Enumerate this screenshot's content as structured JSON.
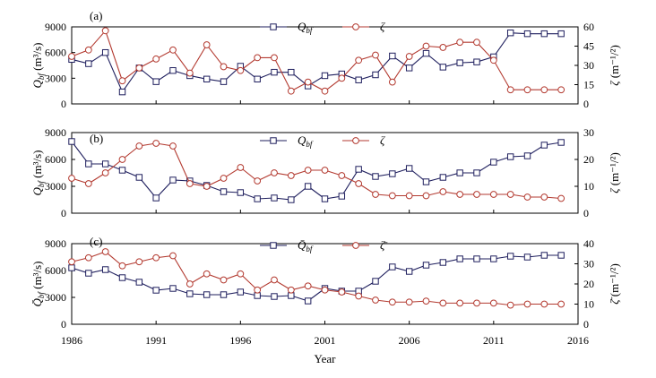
{
  "chart_data": [
    {
      "type": "line",
      "panel_label": "(a)",
      "x": [
        1986,
        1987,
        1988,
        1989,
        1990,
        1991,
        1992,
        1993,
        1994,
        1995,
        1996,
        1997,
        1998,
        1999,
        2000,
        2001,
        2002,
        2003,
        2004,
        2005,
        2006,
        2007,
        2008,
        2009,
        2010,
        2011,
        2012,
        2013,
        2014,
        2015
      ],
      "series": [
        {
          "name": "Q_bf",
          "axis": "left",
          "color": "#1f1f5e",
          "marker": "square",
          "values": [
            5200,
            4700,
            6000,
            1400,
            4200,
            2600,
            3900,
            3300,
            2900,
            2600,
            4400,
            2900,
            3700,
            3700,
            2100,
            3300,
            3500,
            2800,
            3400,
            5600,
            4200,
            5900,
            4300,
            4800,
            4900,
            5500,
            8300,
            8200,
            8200,
            8200
          ]
        },
        {
          "name": "ζ",
          "axis": "right",
          "color": "#b33a30",
          "marker": "circle",
          "values": [
            37,
            42,
            57,
            18,
            28,
            35,
            42,
            24,
            46,
            29,
            26,
            36,
            36,
            10,
            17,
            10,
            20,
            34,
            38,
            17,
            37,
            45,
            44,
            48,
            48,
            34,
            11,
            11,
            11,
            11
          ]
        }
      ],
      "ylabel_left": "Q_bf (m³/s)",
      "ylabel_right": "ζ (m⁻¹/²)",
      "ylim_left": [
        0,
        9000
      ],
      "yticks_left": [
        "0",
        "3000",
        "6000",
        "9000"
      ],
      "ylim_right": [
        0,
        60
      ],
      "yticks_right": [
        "0",
        "15",
        "30",
        "45",
        "60"
      ],
      "legend": [
        "Q_bf",
        "ζ"
      ],
      "legend_position": "top-center"
    },
    {
      "type": "line",
      "panel_label": "(b)",
      "x": [
        1986,
        1987,
        1988,
        1989,
        1990,
        1991,
        1992,
        1993,
        1994,
        1995,
        1996,
        1997,
        1998,
        1999,
        2000,
        2001,
        2002,
        2003,
        2004,
        2005,
        2006,
        2007,
        2008,
        2009,
        2010,
        2011,
        2012,
        2013,
        2014,
        2015
      ],
      "series": [
        {
          "name": "Q_bf",
          "axis": "left",
          "color": "#1f1f5e",
          "marker": "square",
          "values": [
            8000,
            5500,
            5500,
            4800,
            4000,
            1700,
            3700,
            3600,
            3100,
            2400,
            2300,
            1600,
            1700,
            1500,
            3000,
            1600,
            1900,
            4900,
            4100,
            4400,
            5000,
            3500,
            4000,
            4500,
            4500,
            5700,
            6300,
            6400,
            7600,
            7900
          ]
        },
        {
          "name": "ζ",
          "axis": "right",
          "color": "#b33a30",
          "marker": "circle",
          "values": [
            13,
            11,
            15,
            20,
            25,
            26,
            25,
            11,
            10,
            13,
            17,
            12,
            15,
            14,
            16,
            16,
            14,
            11,
            7,
            6.5,
            6.5,
            6.5,
            8,
            7,
            7,
            7,
            7,
            6,
            6,
            5.5
          ]
        }
      ],
      "ylabel_left": "Q_bf (m³/s)",
      "ylabel_right": "ζ (m⁻¹/²)",
      "ylim_left": [
        0,
        9000
      ],
      "yticks_left": [
        "0",
        "3000",
        "6000",
        "9000"
      ],
      "ylim_right": [
        0,
        30
      ],
      "yticks_right": [
        "0",
        "10",
        "20",
        "30"
      ],
      "legend": [
        "Q_bf",
        "ζ"
      ],
      "legend_position": "top-center"
    },
    {
      "type": "line",
      "panel_label": "(c)",
      "x": [
        1986,
        1987,
        1988,
        1989,
        1990,
        1991,
        1992,
        1993,
        1994,
        1995,
        1996,
        1997,
        1998,
        1999,
        2000,
        2001,
        2002,
        2003,
        2004,
        2005,
        2006,
        2007,
        2008,
        2009,
        2010,
        2011,
        2012,
        2013,
        2014,
        2015
      ],
      "series": [
        {
          "name": "Q̄_bf",
          "axis": "left",
          "color": "#1f1f5e",
          "marker": "square",
          "values": [
            6300,
            5700,
            6100,
            5200,
            4700,
            3800,
            4000,
            3400,
            3300,
            3300,
            3600,
            3200,
            3100,
            3200,
            2600,
            4000,
            3700,
            3700,
            4800,
            6400,
            5900,
            6600,
            6900,
            7300,
            7300,
            7300,
            7600,
            7500,
            7700,
            7700
          ]
        },
        {
          "name": "ζ̄",
          "axis": "right",
          "color": "#b33a30",
          "marker": "circle",
          "values": [
            31,
            33,
            36,
            29,
            31,
            33,
            34,
            20,
            25,
            22,
            25,
            17,
            22,
            17,
            19,
            17,
            16,
            14,
            12,
            11,
            11,
            11.5,
            10.5,
            10.5,
            10.5,
            10.5,
            9.5,
            10,
            10,
            10
          ]
        }
      ],
      "ylabel_left": "Q̄_bf (m³/s)",
      "ylabel_right": "ζ̄ (m⁻¹/²)",
      "ylim_left": [
        0,
        9000
      ],
      "yticks_left": [
        "0",
        "3000",
        "6000",
        "9000"
      ],
      "ylim_right": [
        0,
        40
      ],
      "yticks_right": [
        "0",
        "10",
        "20",
        "30",
        "40"
      ],
      "legend": [
        "Q̄_bf",
        "ζ̄"
      ],
      "legend_position": "top-center"
    }
  ],
  "x_axis": {
    "label": "Year",
    "ticks": [
      1986,
      1991,
      1996,
      2001,
      2006,
      2011,
      2016
    ],
    "xlim": [
      1986,
      2016
    ]
  },
  "colors": {
    "q_series": "#1f1f5e",
    "zeta_series": "#b33a30",
    "axis": "#000000"
  }
}
